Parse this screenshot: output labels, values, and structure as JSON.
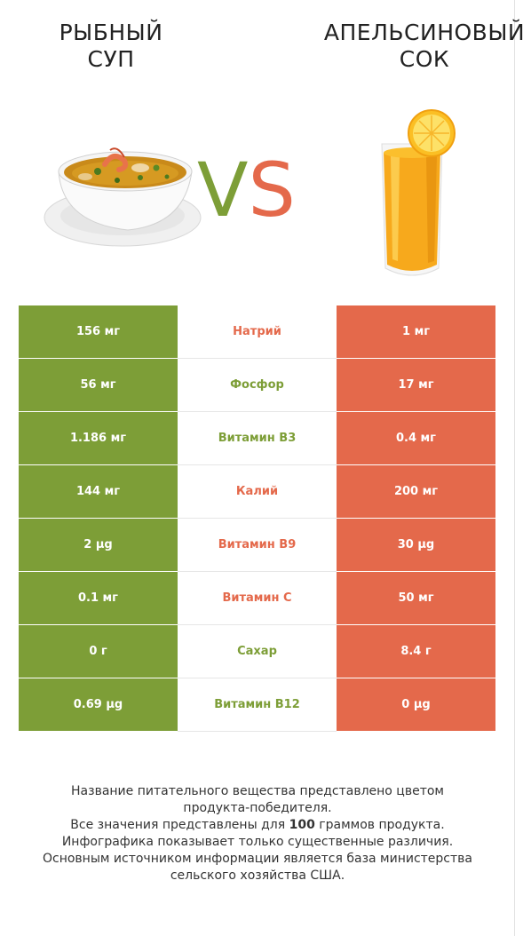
{
  "left_food": {
    "title_line1": "РЫБНЫЙ",
    "title_line2": "СУП"
  },
  "right_food": {
    "title_line1": "АПЕЛЬСИНОВЫЙ",
    "title_line2": "СОК"
  },
  "vs": {
    "v": "V",
    "s": "S"
  },
  "colors": {
    "green": "#7d9e37",
    "red": "#e4694b"
  },
  "rows": [
    {
      "left": "156 мг",
      "name": "Натрий",
      "right": "1 мг",
      "winner": "right"
    },
    {
      "left": "56 мг",
      "name": "Фосфор",
      "right": "17 мг",
      "winner": "left"
    },
    {
      "left": "1.186 мг",
      "name": "Витамин B3",
      "right": "0.4 мг",
      "winner": "left"
    },
    {
      "left": "144 мг",
      "name": "Калий",
      "right": "200 мг",
      "winner": "right"
    },
    {
      "left": "2 µg",
      "name": "Витамин B9",
      "right": "30 µg",
      "winner": "right"
    },
    {
      "left": "0.1 мг",
      "name": "Витамин C",
      "right": "50 мг",
      "winner": "right"
    },
    {
      "left": "0 г",
      "name": "Сахар",
      "right": "8.4 г",
      "winner": "left"
    },
    {
      "left": "0.69 µg",
      "name": "Витамин B12",
      "right": "0 µg",
      "winner": "left"
    }
  ],
  "footer": {
    "line1": "Название питательного вещества представлено цветом",
    "line2": "продукта-победителя.",
    "line3_pre": "Все значения представлены для ",
    "line3_bold": "100",
    "line3_post": " граммов продукта.",
    "line4": "Инфографика показывает только существенные различия.",
    "line5": "Основным источником информации является база министерства",
    "line6": "сельского хозяйства США."
  }
}
